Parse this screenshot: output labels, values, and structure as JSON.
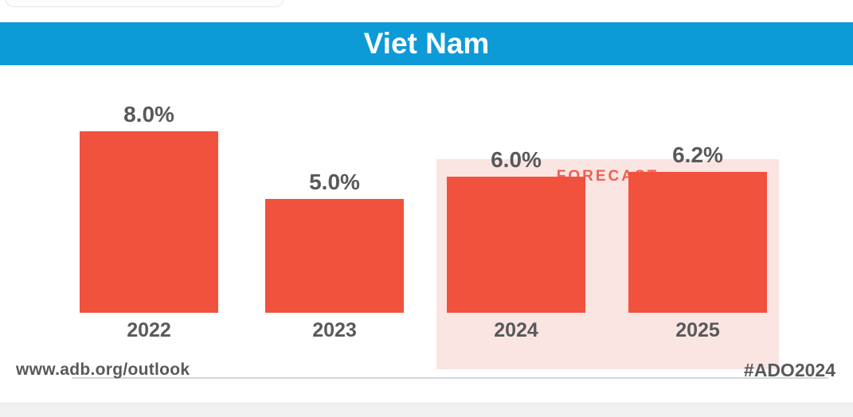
{
  "header": {
    "title": "Viet Nam",
    "banner_color": "#0d9bd7",
    "title_color": "#ffffff"
  },
  "chart_data": {
    "type": "bar",
    "categories": [
      "2022",
      "2023",
      "2024",
      "2025"
    ],
    "values": [
      8.0,
      5.0,
      6.0,
      6.2
    ],
    "value_labels": [
      "8.0%",
      "5.0%",
      "6.0%",
      "6.2%"
    ],
    "unit": "%",
    "ylim": [
      0,
      8.8
    ],
    "grid": false,
    "bar_color": "#f0523e",
    "value_label_color": "#58595b",
    "axis_label_color": "#58595b",
    "axis_line_color": "#d6d7d8",
    "forecast": {
      "label": "FORECAST",
      "applies_to": [
        "2024",
        "2025"
      ],
      "panel_color": "#fae5e3",
      "label_color": "#f0604e"
    }
  },
  "footer": {
    "website": "www.adb.org/outlook",
    "hashtag": "#ADO2024",
    "text_color": "#58595b",
    "strip_color": "#f0f0f1"
  }
}
